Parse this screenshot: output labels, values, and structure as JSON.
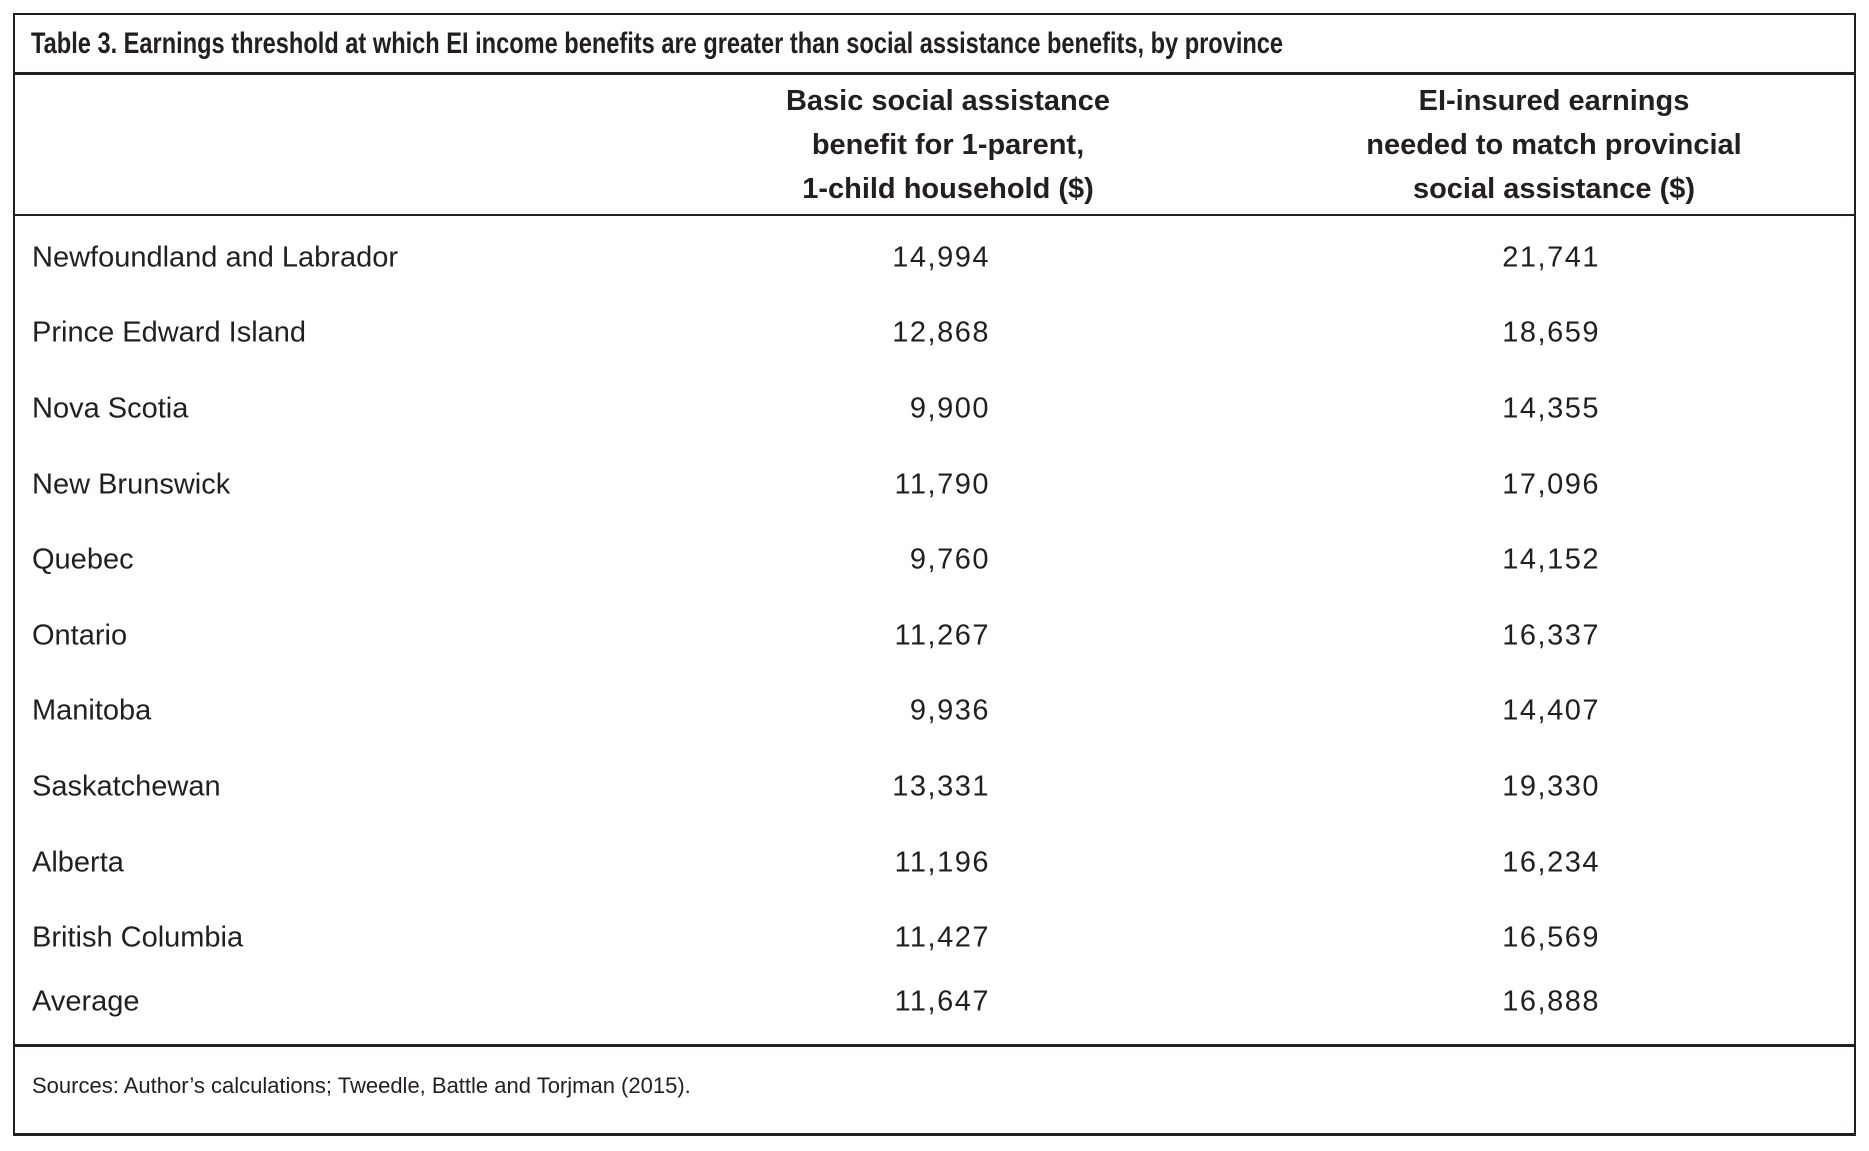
{
  "table": {
    "title": "Table 3. Earnings threshold at which EI income benefits are greater than social assistance benefits, by province",
    "header_basic_lines": [
      "Basic social assistance",
      "benefit for 1-parent,",
      "1-child household ($)"
    ],
    "header_ei_lines": [
      "EI-insured earnings",
      "needed to match provincial",
      "social assistance ($)"
    ],
    "rows": [
      {
        "province": "Newfoundland and Labrador",
        "basic": "14,994",
        "ei": "21,741"
      },
      {
        "province": "Prince Edward Island",
        "basic": "12,868",
        "ei": "18,659"
      },
      {
        "province": "Nova Scotia",
        "basic": "9,900",
        "ei": "14,355"
      },
      {
        "province": "New Brunswick",
        "basic": "11,790",
        "ei": "17,096"
      },
      {
        "province": "Quebec",
        "basic": "9,760",
        "ei": "14,152"
      },
      {
        "province": "Ontario",
        "basic": "11,267",
        "ei": "16,337"
      },
      {
        "province": "Manitoba",
        "basic": "9,936",
        "ei": "14,407"
      },
      {
        "province": "Saskatchewan",
        "basic": "13,331",
        "ei": "19,330"
      },
      {
        "province": "Alberta",
        "basic": "11,196",
        "ei": "16,234"
      },
      {
        "province": "British Columbia",
        "basic": "11,427",
        "ei": "16,569"
      },
      {
        "province": "Average",
        "basic": "11,647",
        "ei": "16,888",
        "tight": true
      }
    ],
    "source_note": "Sources: Author’s calculations; Tweedle, Battle and Torjman (2015).",
    "colors": {
      "ink": "#231f20",
      "background": "#ffffff"
    }
  }
}
